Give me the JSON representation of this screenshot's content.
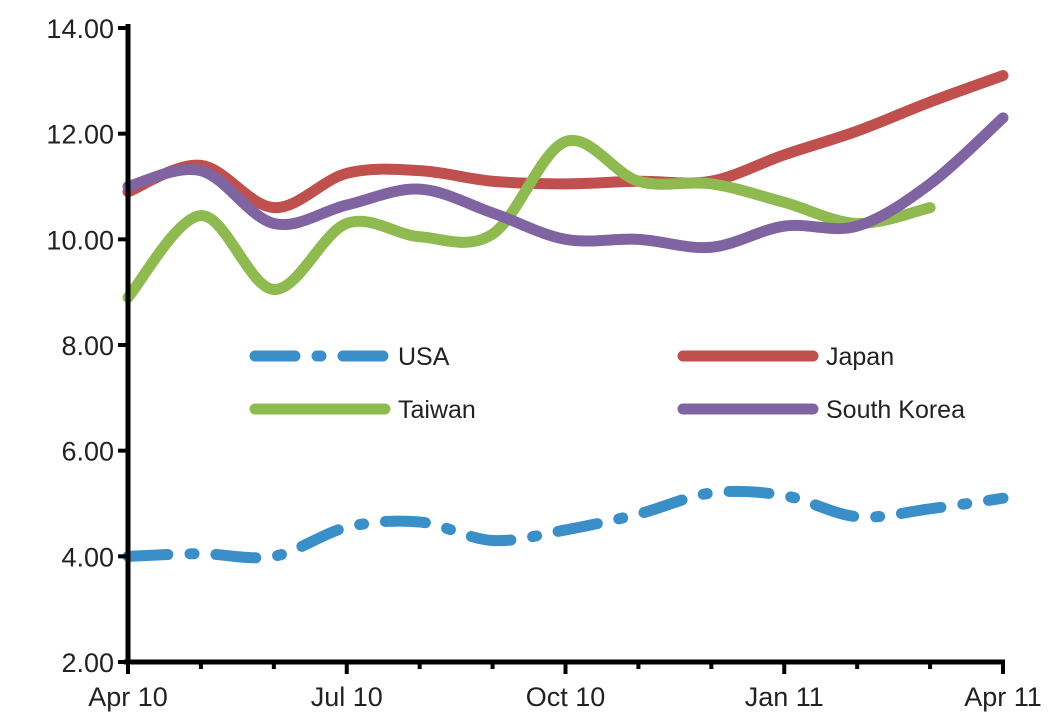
{
  "chart_data": {
    "type": "line",
    "title": "",
    "xlabel": "",
    "ylabel": "",
    "x_ticks": [
      "Apr 10",
      "Jul 10",
      "Oct 10",
      "Jan 11",
      "Apr 11"
    ],
    "y_ticks": [
      "2.00",
      "4.00",
      "6.00",
      "8.00",
      "10.00",
      "12.00",
      "14.00"
    ],
    "ylim": [
      2,
      14
    ],
    "xlim": [
      "2010-04",
      "2011-04"
    ],
    "grid": false,
    "legend": "inside-middle, two columns",
    "series": [
      {
        "name": "USA",
        "color": "#3a8fc8",
        "style": "dash-dot",
        "x": [
          "2010-04",
          "2010-05",
          "2010-06",
          "2010-07",
          "2010-08",
          "2010-09",
          "2010-10",
          "2010-11",
          "2010-12",
          "2011-01",
          "2011-02",
          "2011-03",
          "2011-04"
        ],
        "y": [
          4.0,
          4.05,
          4.0,
          4.55,
          4.65,
          4.3,
          4.5,
          4.8,
          5.2,
          5.15,
          4.75,
          4.9,
          5.1
        ]
      },
      {
        "name": "Japan",
        "color": "#c0504d",
        "style": "solid",
        "x": [
          "2010-04",
          "2010-05",
          "2010-06",
          "2010-07",
          "2010-08",
          "2010-09",
          "2010-10",
          "2010-11",
          "2010-12",
          "2011-01",
          "2011-02",
          "2011-03",
          "2011-04"
        ],
        "y": [
          10.9,
          11.4,
          10.6,
          11.25,
          11.3,
          11.1,
          11.05,
          11.1,
          11.1,
          11.6,
          12.05,
          12.6,
          13.1
        ]
      },
      {
        "name": "Taiwan",
        "color": "#8fba50",
        "style": "solid",
        "x": [
          "2010-04",
          "2010-05",
          "2010-06",
          "2010-07",
          "2010-08",
          "2010-09",
          "2010-10",
          "2010-11",
          "2010-12",
          "2011-01",
          "2011-02",
          "2011-03"
        ],
        "y": [
          8.9,
          10.45,
          9.05,
          10.3,
          10.05,
          10.1,
          11.85,
          11.1,
          11.05,
          10.7,
          10.3,
          10.6
        ]
      },
      {
        "name": "South Korea",
        "color": "#8064a2",
        "style": "solid",
        "x": [
          "2010-04",
          "2010-05",
          "2010-06",
          "2010-07",
          "2010-08",
          "2010-09",
          "2010-10",
          "2010-11",
          "2010-12",
          "2011-01",
          "2011-02",
          "2011-03",
          "2011-04"
        ],
        "y": [
          11.0,
          11.3,
          10.3,
          10.65,
          10.95,
          10.5,
          10.0,
          10.0,
          9.85,
          10.25,
          10.25,
          11.05,
          12.3
        ]
      }
    ]
  }
}
